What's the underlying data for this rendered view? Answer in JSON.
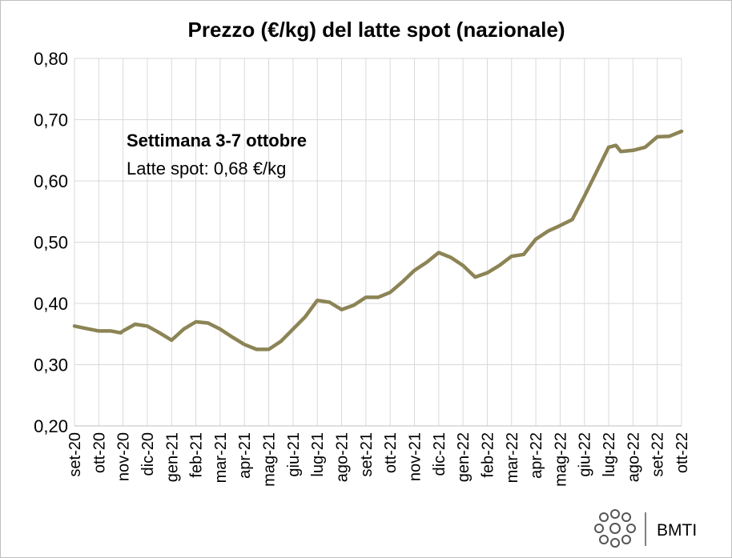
{
  "chart_data": {
    "type": "line",
    "title": "Prezzo (€/kg) del latte spot (nazionale)",
    "annotation_title": "Settimana 3-7 ottobre",
    "annotation_text": "Latte spot: 0,68 €/kg",
    "brand": "BMTI",
    "color": "#8c8455",
    "grid": true,
    "x": [
      0,
      0.5,
      1,
      1.5,
      1.9,
      2,
      2.5,
      3,
      3.5,
      4,
      4.5,
      5,
      5.5,
      6,
      6.5,
      7,
      7.5,
      8,
      8.5,
      9,
      9.5,
      10,
      10.5,
      11,
      11.5,
      12,
      12.5,
      13,
      13.5,
      14,
      14.5,
      15,
      15.5,
      16,
      16.5,
      17,
      17.5,
      18,
      18.5,
      19,
      19.5,
      20,
      20.5,
      21,
      21.5,
      22,
      22.3,
      22.5,
      23,
      23.5,
      24,
      24.5,
      25
    ],
    "values": [
      0.363,
      0.359,
      0.355,
      0.355,
      0.352,
      0.355,
      0.366,
      0.363,
      0.352,
      0.34,
      0.358,
      0.37,
      0.368,
      0.358,
      0.345,
      0.333,
      0.325,
      0.325,
      0.338,
      0.358,
      0.378,
      0.405,
      0.402,
      0.39,
      0.397,
      0.41,
      0.41,
      0.418,
      0.435,
      0.454,
      0.467,
      0.483,
      0.475,
      0.462,
      0.443,
      0.45,
      0.462,
      0.477,
      0.48,
      0.505,
      0.518,
      0.527,
      0.537,
      0.575,
      0.615,
      0.655,
      0.658,
      0.648,
      0.65,
      0.655,
      0.672,
      0.673,
      0.681
    ],
    "xlim": [
      0,
      25
    ],
    "xticks": [
      {
        "value": 0,
        "label": "set-20"
      },
      {
        "value": 1,
        "label": "ott-20"
      },
      {
        "value": 2,
        "label": "nov-20"
      },
      {
        "value": 3,
        "label": "dic-20"
      },
      {
        "value": 4,
        "label": "gen-21"
      },
      {
        "value": 5,
        "label": "feb-21"
      },
      {
        "value": 6,
        "label": "mar-21"
      },
      {
        "value": 7,
        "label": "apr-21"
      },
      {
        "value": 8,
        "label": "mag-21"
      },
      {
        "value": 9,
        "label": "giu-21"
      },
      {
        "value": 10,
        "label": "lug-21"
      },
      {
        "value": 11,
        "label": "ago-21"
      },
      {
        "value": 12,
        "label": "set-21"
      },
      {
        "value": 13,
        "label": "ott-21"
      },
      {
        "value": 14,
        "label": "nov-21"
      },
      {
        "value": 15,
        "label": "dic-21"
      },
      {
        "value": 16,
        "label": "gen-22"
      },
      {
        "value": 17,
        "label": "feb-22"
      },
      {
        "value": 18,
        "label": "mar-22"
      },
      {
        "value": 19,
        "label": "apr-22"
      },
      {
        "value": 20,
        "label": "mag-22"
      },
      {
        "value": 21,
        "label": "giu-22"
      },
      {
        "value": 22,
        "label": "lug-22"
      },
      {
        "value": 23,
        "label": "ago-22"
      },
      {
        "value": 24,
        "label": "set-22"
      },
      {
        "value": 25,
        "label": "ott-22"
      }
    ],
    "ylim": [
      0.2,
      0.8
    ],
    "yticks": [
      {
        "value": 0.2,
        "label": "0,20"
      },
      {
        "value": 0.3,
        "label": "0,30"
      },
      {
        "value": 0.4,
        "label": "0,40"
      },
      {
        "value": 0.5,
        "label": "0,50"
      },
      {
        "value": 0.6,
        "label": "0,60"
      },
      {
        "value": 0.7,
        "label": "0,70"
      },
      {
        "value": 0.8,
        "label": "0,80"
      }
    ]
  }
}
